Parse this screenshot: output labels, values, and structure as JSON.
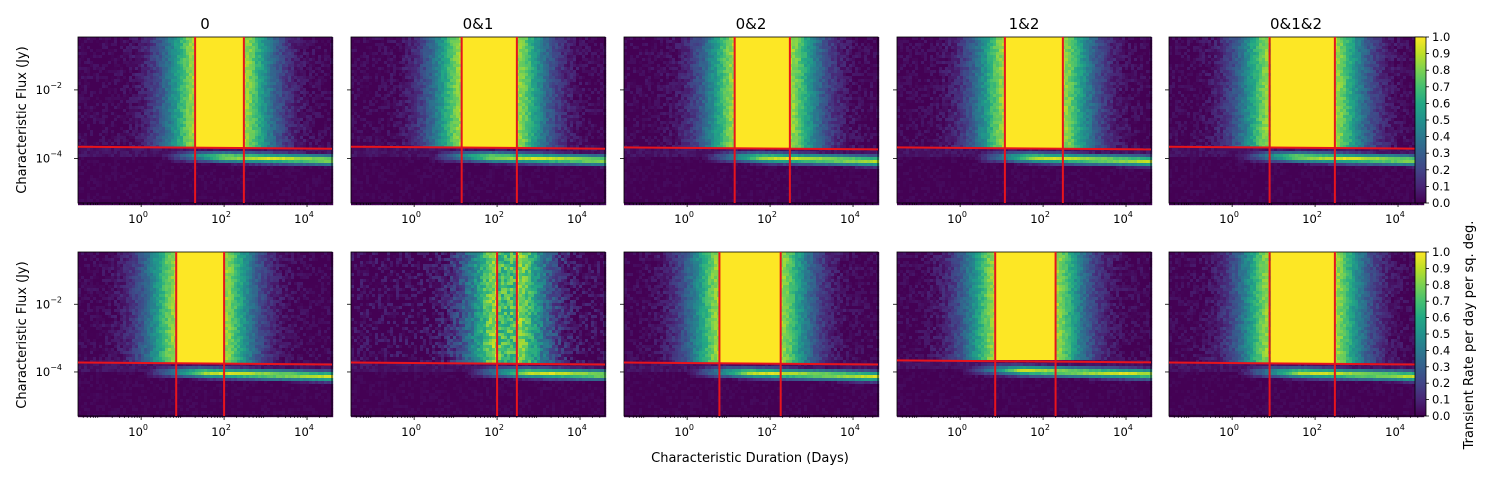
{
  "chart_data": {
    "type": "heatmap",
    "x_scale": "log",
    "y_scale": "log",
    "xlabel": "Characteristic Duration (Days)",
    "ylabel": "Characteristic Flux (Jy)",
    "colorbar_label": "Transient Rate per day per sq. deg.",
    "colormap": "viridis",
    "colorbar_range": [
      0,
      1
    ],
    "colorbar_ticks": [
      "0.0",
      "0.1",
      "0.2",
      "0.3",
      "0.4",
      "0.5",
      "0.6",
      "0.7",
      "0.8",
      "0.9",
      "1.0"
    ],
    "xlim": [
      0.03,
      40000
    ],
    "ylim": [
      5e-06,
      0.35
    ],
    "x_ticks": [
      {
        "value": 1,
        "label": "10",
        "exp": "0"
      },
      {
        "value": 100,
        "label": "10",
        "exp": "2"
      },
      {
        "value": 10000,
        "label": "10",
        "exp": "4"
      }
    ],
    "y_ticks": [
      {
        "value": 0.01,
        "label": "10",
        "exp": "−2"
      },
      {
        "value": 0.0001,
        "label": "10",
        "exp": "−4"
      }
    ],
    "line_color": "#e8141c",
    "top_row": [
      {
        "title": "0",
        "vlines": [
          20,
          300
        ],
        "hline": 0.00022
      },
      {
        "title": "0&1",
        "vlines": [
          14,
          300
        ],
        "hline": 0.00022
      },
      {
        "title": "0&2",
        "vlines": [
          14,
          300
        ],
        "hline": 0.00021
      },
      {
        "title": "1&2",
        "vlines": [
          12,
          300
        ],
        "hline": 0.00021
      },
      {
        "title": "0&1&2",
        "vlines": [
          8,
          300
        ],
        "hline": 0.00022
      }
    ],
    "bottom_row": [
      {
        "vlines": [
          7,
          100
        ],
        "hline": 0.00019
      },
      {
        "vlines": [
          100,
          300
        ],
        "hline": 0.00019
      },
      {
        "vlines": [
          6,
          180
        ],
        "hline": 0.00019
      },
      {
        "vlines": [
          7,
          200
        ],
        "hline": 0.00022
      },
      {
        "vlines": [
          8,
          300
        ],
        "hline": 0.00019
      }
    ]
  }
}
